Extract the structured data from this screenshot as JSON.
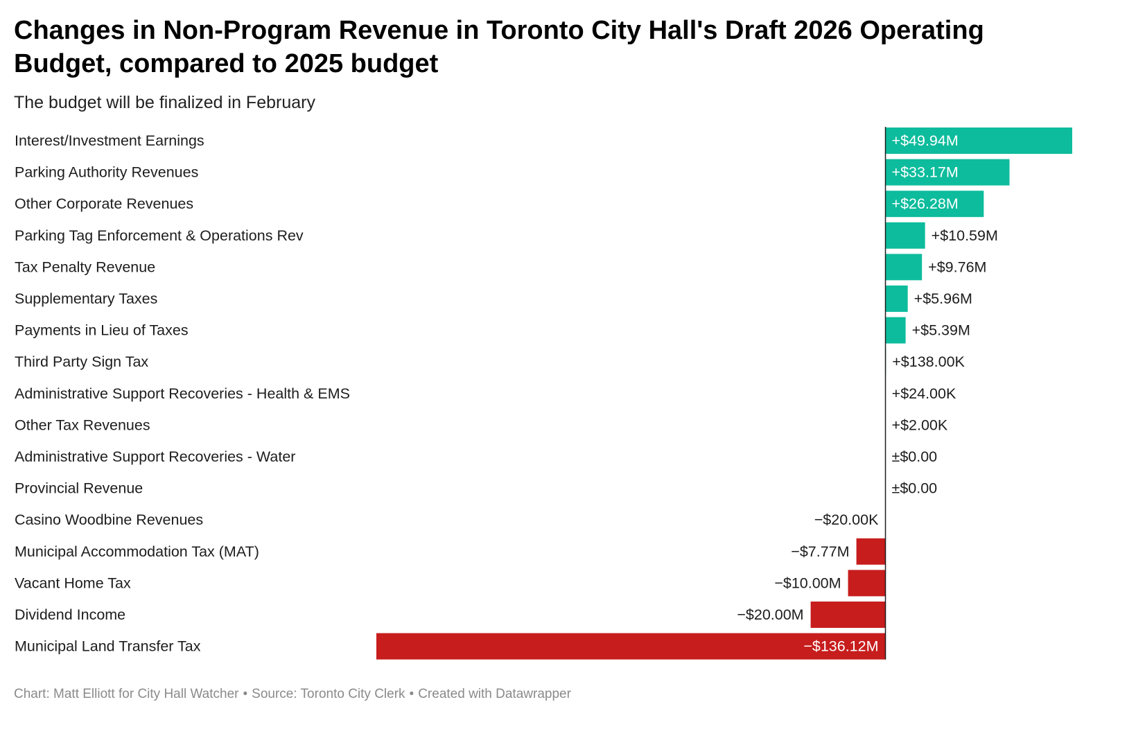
{
  "title": "Changes in Non-Program Revenue in Toronto City Hall's Draft 2026 Operating Budget, compared to 2025 budget",
  "subtitle": "The budget will be finalized in February",
  "footer": {
    "chart_credit": "Chart: Matt Elliott for City Hall Watcher",
    "source": "Source: Toronto City Clerk",
    "tool": "Created with Datawrapper",
    "separator": "•"
  },
  "colors": {
    "positive": "#0dbc9c",
    "negative": "#c71d1d",
    "axis": "#1d1d1d"
  },
  "chart_data": {
    "type": "bar",
    "orientation": "horizontal",
    "unit": "CAD",
    "categories": [
      "Interest/Investment Earnings",
      "Parking Authority Revenues",
      "Other Corporate Revenues",
      "Parking Tag Enforcement & Operations Rev",
      "Tax Penalty Revenue",
      "Supplementary Taxes",
      "Payments in Lieu of Taxes",
      "Third Party Sign Tax",
      "Administrative Support Recoveries - Health & EMS",
      "Other Tax Revenues",
      "Administrative Support Recoveries - Water",
      "Provincial Revenue",
      "Casino Woodbine Revenues",
      "Municipal Accommodation Tax (MAT)",
      "Vacant Home Tax",
      "Dividend Income",
      "Municipal Land Transfer Tax"
    ],
    "values": [
      49940000,
      33170000,
      26280000,
      10590000,
      9760000,
      5960000,
      5390000,
      138000,
      24000,
      2000,
      0,
      0,
      -20000,
      -7770000,
      -10000000,
      -20000000,
      -136120000
    ],
    "labels": [
      "+$49.94M",
      "+$33.17M",
      "+$26.28M",
      "+$10.59M",
      "+$9.76M",
      "+$5.96M",
      "+$5.39M",
      "+$138.00K",
      "+$24.00K",
      "+$2.00K",
      "±$0.00",
      "±$0.00",
      "−$20.00K",
      "−$7.77M",
      "−$10.00M",
      "−$20.00M",
      "−$136.12M"
    ],
    "xlim": [
      -136120000,
      49940000
    ]
  }
}
